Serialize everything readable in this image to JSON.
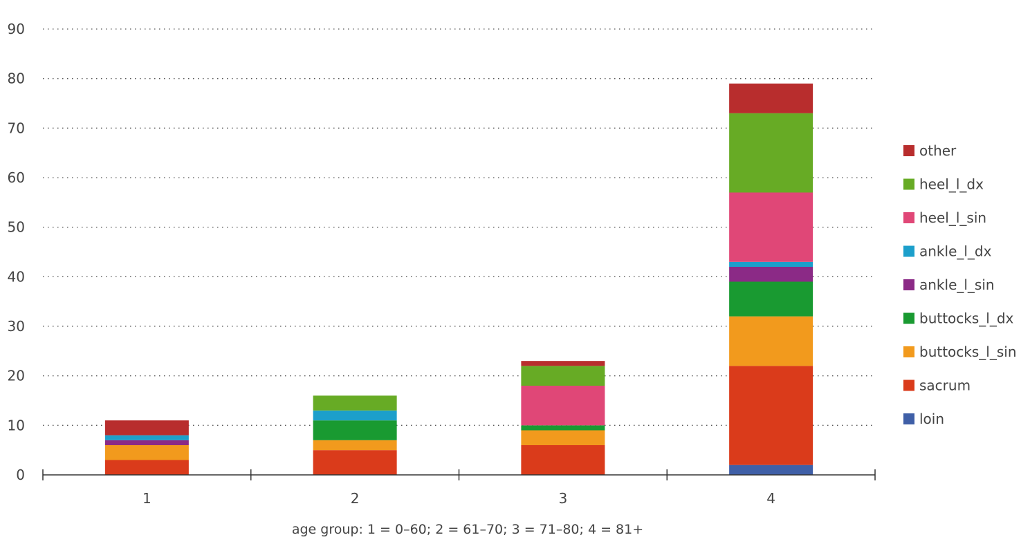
{
  "chart_data": {
    "type": "bar",
    "stacked": true,
    "title": "",
    "xlabel": "age group: 1 = 0–60; 2 = 61–70; 3 = 71–80; 4 = 81+",
    "ylabel": "",
    "ylim": [
      0,
      90
    ],
    "yticks": [
      0,
      10,
      20,
      30,
      40,
      50,
      60,
      70,
      80,
      90
    ],
    "grid": "horizontal-dotted",
    "legend_position": "right",
    "categories": [
      "1",
      "2",
      "3",
      "4"
    ],
    "series": [
      {
        "name": "loin",
        "color": "#3f5fa7",
        "values": [
          0,
          0,
          0,
          2
        ]
      },
      {
        "name": "sacrum",
        "color": "#da3b1b",
        "values": [
          3,
          5,
          6,
          20
        ]
      },
      {
        "name": "buttocks_l_sin",
        "color": "#f29a1d",
        "values": [
          3,
          2,
          3,
          10
        ]
      },
      {
        "name": "buttocks_l_dx",
        "color": "#199a31",
        "values": [
          0,
          4,
          1,
          7
        ]
      },
      {
        "name": "ankle_l_sin",
        "color": "#8b2a86",
        "values": [
          1,
          0,
          0,
          3
        ]
      },
      {
        "name": "ankle_l_dx",
        "color": "#1c9fcb",
        "values": [
          1,
          2,
          0,
          1
        ]
      },
      {
        "name": "heel_l_sin",
        "color": "#e04777",
        "values": [
          0,
          0,
          8,
          14
        ]
      },
      {
        "name": "heel_l_dx",
        "color": "#67ab25",
        "values": [
          0,
          3,
          4,
          16
        ]
      },
      {
        "name": "other",
        "color": "#b82d2d",
        "values": [
          3,
          0,
          1,
          6
        ]
      }
    ]
  }
}
